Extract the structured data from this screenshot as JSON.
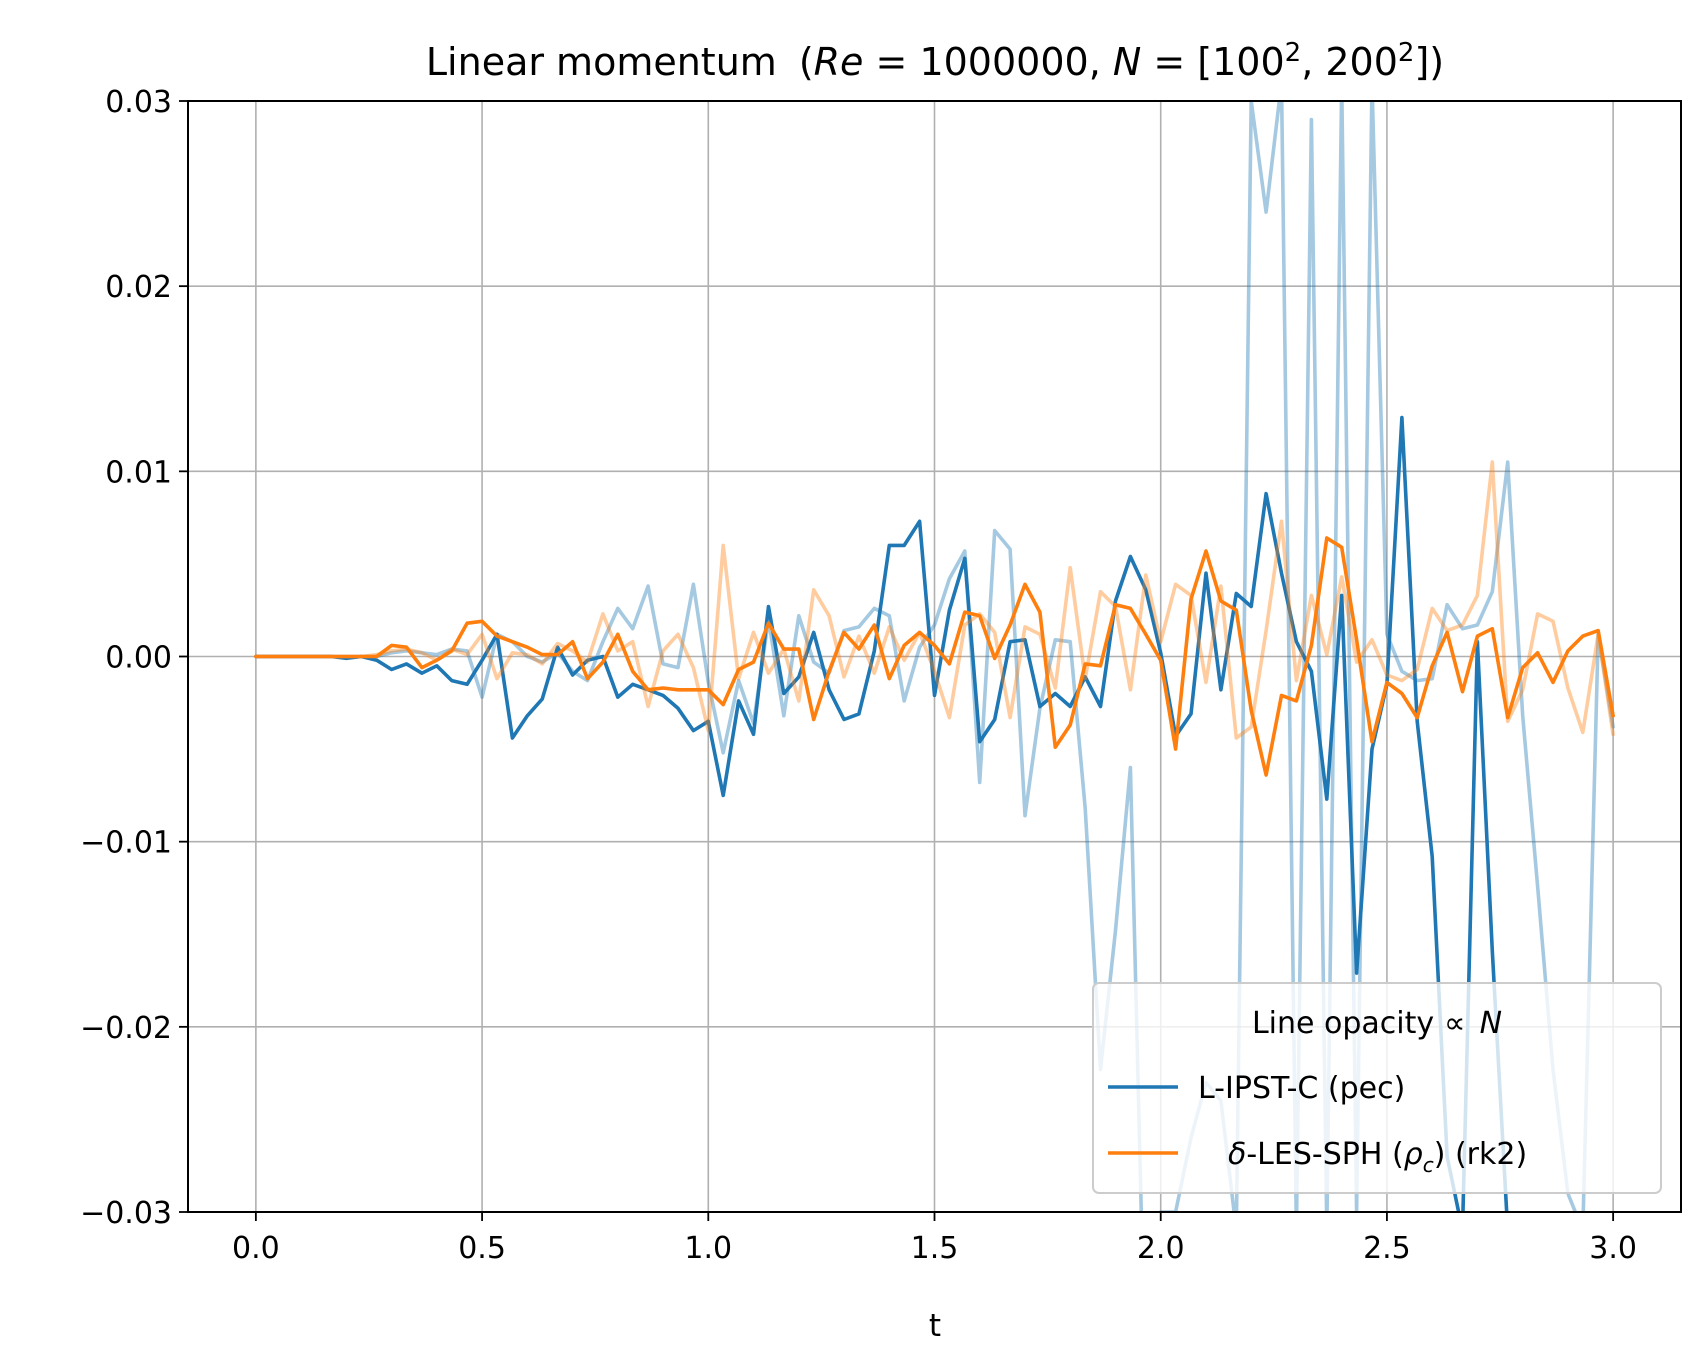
{
  "chart_data": {
    "type": "line",
    "title": "Linear momentum",
    "title_math": {
      "re_symbol": "Re",
      "re_value": "1000000",
      "n_symbol": "N",
      "n1": "100",
      "n2": "200",
      "exponent": "2"
    },
    "xlabel": "t",
    "ylabel": "",
    "xlim": [
      -0.15,
      3.15
    ],
    "ylim": [
      -0.03,
      0.03
    ],
    "x_ticks": [
      "0.0",
      "0.5",
      "1.0",
      "1.5",
      "2.0",
      "2.5",
      "3.0"
    ],
    "y_ticks": [
      "0.03",
      "0.02",
      "0.01",
      "0.00",
      "−0.01",
      "−0.02",
      "−0.03"
    ],
    "grid": true,
    "legend": {
      "placement": "lower-right",
      "title_prefix": "Line opacity",
      "title_symbol": "∝",
      "title_var": "N",
      "entries": [
        {
          "label": "L-IPST-C (pec)",
          "color": "#1f77b4"
        },
        {
          "label_prefix": "δ",
          "label_mid": "-LES-SPH (",
          "label_rho": "ρ",
          "label_sub": "c",
          "label_suffix": ") (rk2)",
          "color": "#ff7f0e"
        }
      ]
    },
    "colors": {
      "blue": "#1f77b4",
      "orange": "#ff7f0e"
    },
    "series": [
      {
        "label_ref": "L-IPST-C (pec)",
        "resolution": "100^2",
        "color": "#1f77b4",
        "opacity": 0.4,
        "x": [
          0.0,
          0.033,
          0.067,
          0.1,
          0.133,
          0.167,
          0.2,
          0.233,
          0.267,
          0.3,
          0.333,
          0.367,
          0.4,
          0.433,
          0.467,
          0.5,
          0.533,
          0.567,
          0.6,
          0.633,
          0.667,
          0.7,
          0.733,
          0.767,
          0.8,
          0.833,
          0.867,
          0.9,
          0.933,
          0.967,
          1.0,
          1.033,
          1.067,
          1.1,
          1.133,
          1.167,
          1.2,
          1.233,
          1.267,
          1.3,
          1.333,
          1.367,
          1.4,
          1.433,
          1.467,
          1.5,
          1.533,
          1.567,
          1.6,
          1.633,
          1.667,
          1.7,
          1.733,
          1.767,
          1.8,
          1.833,
          1.867,
          1.9,
          1.933,
          1.967,
          2.0,
          2.033,
          2.067,
          2.1,
          2.133,
          2.167,
          2.2,
          2.233,
          2.267,
          2.3,
          2.333,
          2.367,
          2.4,
          2.433,
          2.467,
          2.5,
          2.533,
          2.567,
          2.6,
          2.633,
          2.667,
          2.7,
          2.733,
          2.767,
          2.8,
          2.833,
          2.867,
          2.9,
          2.933,
          2.967,
          3.0
        ],
        "y": [
          0.0,
          0.0,
          0.0,
          0.0,
          0.0,
          0.0,
          0.0,
          0.0,
          0.0,
          0.0002,
          0.0003,
          0.0002,
          0.0001,
          0.0004,
          0.0003,
          -0.0022,
          0.0012,
          0.0008,
          0.0,
          -0.0003,
          0.0002,
          -0.0008,
          -0.0013,
          0.0008,
          0.0026,
          0.0015,
          0.0038,
          -0.0004,
          -0.0006,
          0.0039,
          -0.0014,
          -0.0052,
          -0.0013,
          -0.0036,
          0.002,
          -0.0032,
          0.0022,
          -0.0003,
          -0.0009,
          0.0014,
          0.0016,
          0.0026,
          0.0022,
          -0.0024,
          0.0005,
          0.0017,
          0.0042,
          0.0057,
          -0.0068,
          0.0068,
          0.0058,
          -0.0086,
          -0.0028,
          0.0009,
          0.0008,
          -0.0082,
          -0.0223,
          -0.0148,
          -0.006,
          -0.04,
          -0.03,
          -0.03,
          -0.026,
          -0.023,
          -0.024,
          -0.031,
          0.03,
          0.024,
          0.031,
          -0.031,
          0.029,
          -0.031,
          0.031,
          -0.03,
          0.031,
          0.0012,
          -0.0008,
          -0.0013,
          -0.0012,
          0.0028,
          0.0015,
          0.0017,
          0.0035,
          0.0105,
          -0.0032,
          -0.0124,
          -0.0223,
          -0.029,
          -0.031,
          0.0012,
          -0.0038
        ]
      },
      {
        "label_ref": "L-IPST-C (pec)",
        "resolution": "200^2",
        "color": "#1f77b4",
        "opacity": 1.0,
        "x": [
          0.0,
          0.033,
          0.067,
          0.1,
          0.133,
          0.167,
          0.2,
          0.233,
          0.267,
          0.3,
          0.333,
          0.367,
          0.4,
          0.433,
          0.467,
          0.5,
          0.533,
          0.567,
          0.6,
          0.633,
          0.667,
          0.7,
          0.733,
          0.767,
          0.8,
          0.833,
          0.867,
          0.9,
          0.933,
          0.967,
          1.0,
          1.033,
          1.067,
          1.1,
          1.133,
          1.167,
          1.2,
          1.233,
          1.267,
          1.3,
          1.333,
          1.367,
          1.4,
          1.433,
          1.467,
          1.5,
          1.533,
          1.567,
          1.6,
          1.633,
          1.667,
          1.7,
          1.733,
          1.767,
          1.8,
          1.833,
          1.867,
          1.9,
          1.933,
          1.967,
          2.0,
          2.033,
          2.067,
          2.1,
          2.133,
          2.167,
          2.2,
          2.233,
          2.267,
          2.3,
          2.333,
          2.367,
          2.4,
          2.433,
          2.467,
          2.5,
          2.533,
          2.567,
          2.6,
          2.633,
          2.667,
          2.7,
          2.733,
          2.767,
          2.8,
          2.833,
          2.867,
          2.9,
          2.933,
          2.967,
          3.0
        ],
        "y": [
          0.0,
          0.0,
          0.0,
          0.0,
          0.0,
          0.0,
          -0.0001,
          0.0,
          -0.0002,
          -0.0007,
          -0.0004,
          -0.0009,
          -0.0005,
          -0.0013,
          -0.0015,
          -0.0002,
          0.0012,
          -0.0044,
          -0.0032,
          -0.0023,
          0.0005,
          -0.001,
          -0.0002,
          0.0,
          -0.0022,
          -0.0015,
          -0.0018,
          -0.0021,
          -0.0028,
          -0.004,
          -0.0035,
          -0.0075,
          -0.0024,
          -0.0042,
          0.0027,
          -0.002,
          -0.0011,
          0.0013,
          -0.0018,
          -0.0034,
          -0.0031,
          0.0003,
          0.006,
          0.006,
          0.0073,
          -0.0021,
          0.0025,
          0.0053,
          -0.0046,
          -0.0034,
          0.0008,
          0.0009,
          -0.0027,
          -0.002,
          -0.0027,
          -0.0011,
          -0.0027,
          0.003,
          0.0054,
          0.0036,
          0.0002,
          -0.0043,
          -0.0031,
          0.0045,
          -0.0018,
          0.0034,
          0.0027,
          0.0088,
          0.0045,
          0.0008,
          -0.0008,
          -0.0077,
          0.0033,
          -0.0171,
          -0.005,
          -0.0015,
          0.0129,
          -0.0035,
          -0.0108,
          -0.027,
          -0.031,
          0.0008,
          -0.0159,
          -0.031,
          -0.031,
          -0.031,
          -0.031,
          -0.031,
          -0.031,
          -0.031,
          -0.031
        ]
      },
      {
        "label_ref": "δ-LES-SPH (ρc) (rk2)",
        "resolution": "100^2",
        "color": "#ff7f0e",
        "opacity": 0.4,
        "x": [
          0.0,
          0.033,
          0.067,
          0.1,
          0.133,
          0.167,
          0.2,
          0.233,
          0.267,
          0.3,
          0.333,
          0.367,
          0.4,
          0.433,
          0.467,
          0.5,
          0.533,
          0.567,
          0.6,
          0.633,
          0.667,
          0.7,
          0.733,
          0.767,
          0.8,
          0.833,
          0.867,
          0.9,
          0.933,
          0.967,
          1.0,
          1.033,
          1.067,
          1.1,
          1.133,
          1.167,
          1.2,
          1.233,
          1.267,
          1.3,
          1.333,
          1.367,
          1.4,
          1.433,
          1.467,
          1.5,
          1.533,
          1.567,
          1.6,
          1.633,
          1.667,
          1.7,
          1.733,
          1.767,
          1.8,
          1.833,
          1.867,
          1.9,
          1.933,
          1.967,
          2.0,
          2.033,
          2.067,
          2.1,
          2.133,
          2.167,
          2.2,
          2.233,
          2.267,
          2.3,
          2.333,
          2.367,
          2.4,
          2.433,
          2.467,
          2.5,
          2.533,
          2.567,
          2.6,
          2.633,
          2.667,
          2.7,
          2.733,
          2.767,
          2.8,
          2.833,
          2.867,
          2.9,
          2.933,
          2.967,
          3.0
        ],
        "y": [
          0.0,
          0.0,
          0.0,
          0.0,
          0.0,
          0.0,
          0.0,
          0.0,
          0.0001,
          0.0003,
          0.0004,
          0.0002,
          -0.0002,
          0.0004,
          0.0001,
          0.0012,
          -0.0012,
          0.0002,
          0.0001,
          -0.0004,
          0.0007,
          0.0003,
          -0.0003,
          0.0023,
          0.0003,
          0.0008,
          -0.0027,
          0.0003,
          0.0012,
          -0.0006,
          -0.004,
          0.006,
          -0.0012,
          0.0013,
          -0.0009,
          0.0004,
          -0.0024,
          0.0036,
          0.0022,
          -0.0011,
          0.0011,
          -0.0009,
          0.0016,
          -0.0002,
          0.0013,
          -0.0008,
          -0.0033,
          0.0017,
          0.0023,
          0.0013,
          -0.0033,
          0.0016,
          0.0012,
          -0.0017,
          0.0048,
          -0.0012,
          0.0035,
          0.0027,
          -0.0018,
          0.0044,
          0.0008,
          0.0039,
          0.0033,
          -0.0014,
          0.0038,
          -0.0044,
          -0.0038,
          0.0014,
          0.0073,
          -0.0013,
          0.0033,
          0.0001,
          0.0043,
          -0.0003,
          0.0009,
          -0.001,
          -0.0013,
          -0.0007,
          0.0026,
          0.0014,
          0.0017,
          0.0033,
          0.0105,
          -0.0035,
          -0.0018,
          0.0023,
          0.0019,
          -0.0017,
          -0.0041,
          0.0012,
          -0.0042
        ]
      },
      {
        "label_ref": "δ-LES-SPH (ρc) (rk2)",
        "resolution": "200^2",
        "color": "#ff7f0e",
        "opacity": 1.0,
        "x": [
          0.0,
          0.033,
          0.067,
          0.1,
          0.133,
          0.167,
          0.2,
          0.233,
          0.267,
          0.3,
          0.333,
          0.367,
          0.4,
          0.433,
          0.467,
          0.5,
          0.533,
          0.567,
          0.6,
          0.633,
          0.667,
          0.7,
          0.733,
          0.767,
          0.8,
          0.833,
          0.867,
          0.9,
          0.933,
          0.967,
          1.0,
          1.033,
          1.067,
          1.1,
          1.133,
          1.167,
          1.2,
          1.233,
          1.267,
          1.3,
          1.333,
          1.367,
          1.4,
          1.433,
          1.467,
          1.5,
          1.533,
          1.567,
          1.6,
          1.633,
          1.667,
          1.7,
          1.733,
          1.767,
          1.8,
          1.833,
          1.867,
          1.9,
          1.933,
          1.967,
          2.0,
          2.033,
          2.067,
          2.1,
          2.133,
          2.167,
          2.2,
          2.233,
          2.267,
          2.3,
          2.333,
          2.367,
          2.4,
          2.433,
          2.467,
          2.5,
          2.533,
          2.567,
          2.6,
          2.633,
          2.667,
          2.7,
          2.733,
          2.767,
          2.8,
          2.833,
          2.867,
          2.9,
          2.933,
          2.967,
          3.0
        ],
        "y": [
          0.0,
          0.0,
          0.0,
          0.0,
          0.0,
          0.0,
          0.0,
          0.0,
          0.0,
          0.0006,
          0.0005,
          -0.0006,
          -0.0002,
          0.0003,
          0.0018,
          0.0019,
          0.0011,
          0.0008,
          0.0005,
          0.0001,
          0.0001,
          0.0008,
          -0.0012,
          -0.0003,
          0.0012,
          -0.0008,
          -0.0018,
          -0.0017,
          -0.0018,
          -0.0018,
          -0.0018,
          -0.0026,
          -0.0007,
          -0.0003,
          0.0018,
          0.0004,
          0.0004,
          -0.0034,
          -0.0008,
          0.0013,
          0.0004,
          0.0017,
          -0.0012,
          0.0006,
          0.0013,
          0.0006,
          -0.0004,
          0.0024,
          0.0022,
          -0.0001,
          0.0017,
          0.0039,
          0.0024,
          -0.0049,
          -0.0037,
          -0.0004,
          -0.0005,
          0.0028,
          0.0026,
          0.0012,
          -0.0002,
          -0.005,
          0.0031,
          0.0057,
          0.003,
          0.0025,
          -0.0029,
          -0.0064,
          -0.0021,
          -0.0024,
          0.0006,
          0.0064,
          0.0059,
          0.0009,
          -0.0046,
          -0.0014,
          -0.002,
          -0.0033,
          -0.0005,
          0.0013,
          -0.0019,
          0.0011,
          0.0015,
          -0.0033,
          -0.0006,
          0.0002,
          -0.0014,
          0.0003,
          0.0011,
          0.0014,
          -0.0032
        ]
      }
    ]
  }
}
